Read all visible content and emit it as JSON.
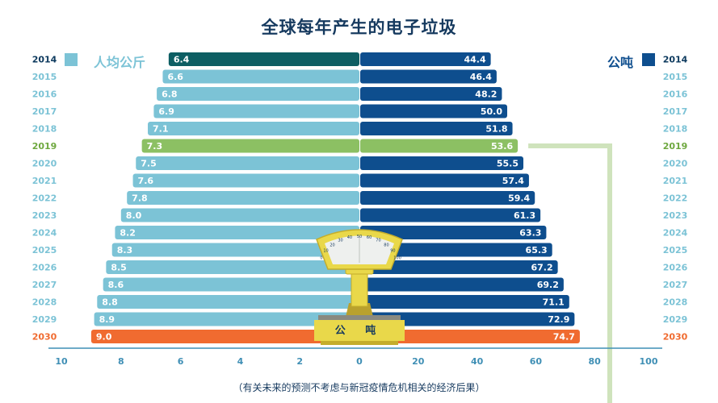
{
  "title": "全球每年产生的电子垃圾",
  "footnote": "（有关未来的预测不考虑与新冠疫情危机相关的经济后果）",
  "scale_label": "公 吨",
  "scale_dial_ticks": [
    "0",
    "10",
    "20",
    "30",
    "40",
    "50",
    "60",
    "70",
    "80",
    "90",
    "100"
  ],
  "colors": {
    "per_capita": "#7cc3d6",
    "tonnes": "#0e4e8e",
    "year_2014_left": "#0d5e63",
    "highlight_2019": "#8cc063",
    "projection_2030": "#f06b30",
    "axis": "#3f8fb5",
    "year_label": "#7cc3d6",
    "year_label_dark": "#0d3a5e",
    "year_label_2019": "#6ea83f",
    "year_label_2030": "#f06b30"
  },
  "chart_data": {
    "type": "bar",
    "orientation": "horizontal",
    "layout": "back-to-back",
    "title": "全球每年产生的电子垃圾",
    "categories": [
      "2014",
      "2015",
      "2016",
      "2017",
      "2018",
      "2019",
      "2020",
      "2021",
      "2022",
      "2023",
      "2024",
      "2025",
      "2026",
      "2027",
      "2028",
      "2029",
      "2030"
    ],
    "series": [
      {
        "name": "人均公斤",
        "side": "left",
        "values": [
          6.4,
          6.6,
          6.8,
          6.9,
          7.1,
          7.3,
          7.5,
          7.6,
          7.8,
          8.0,
          8.2,
          8.3,
          8.5,
          8.6,
          8.8,
          8.9,
          9.0
        ],
        "labels": [
          "6.4",
          "6.6",
          "6.8",
          "6.9",
          "7.1",
          "7.3",
          "7.5",
          "7.6",
          "7.8",
          "8.0",
          "8.2",
          "8.3",
          "8.5",
          "8.6",
          "8.8",
          "8.9",
          "9.0"
        ],
        "xlim": [
          10,
          0
        ],
        "ticks": [
          "10",
          "8",
          "6",
          "4",
          "2",
          "0"
        ]
      },
      {
        "name": "公吨",
        "side": "right",
        "values": [
          44.4,
          46.4,
          48.2,
          50.0,
          51.8,
          53.6,
          55.5,
          57.4,
          59.4,
          61.3,
          63.3,
          65.3,
          67.2,
          69.2,
          71.1,
          72.9,
          74.7
        ],
        "labels": [
          "44.4",
          "46.4",
          "48.2",
          "50.0",
          "51.8",
          "53.6",
          "55.5",
          "57.4",
          "59.4",
          "61.3",
          "63.3",
          "65.3",
          "67.2",
          "69.2",
          "71.1",
          "72.9",
          "74.7"
        ],
        "xlim": [
          0,
          100
        ],
        "ticks": [
          "20",
          "40",
          "60",
          "80",
          "100"
        ]
      }
    ],
    "highlight": {
      "2019": "current",
      "2030": "projection"
    },
    "legend": "top"
  }
}
